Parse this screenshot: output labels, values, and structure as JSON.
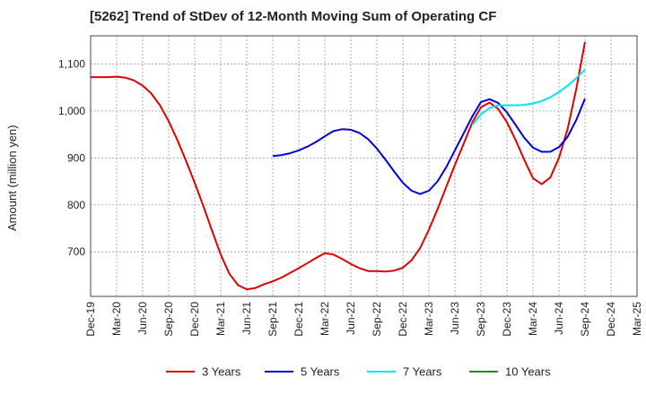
{
  "title": "[5262]  Trend of StDev of 12-Month Moving Sum of Operating CF",
  "chart_data": {
    "type": "line",
    "title": "[5262]  Trend of StDev of 12-Month Moving Sum of Operating CF",
    "xlabel": "",
    "ylabel": "Amount (million yen)",
    "x": [
      "Dec-19",
      "Mar-20",
      "Jun-20",
      "Sep-20",
      "Dec-20",
      "Mar-21",
      "Jun-21",
      "Sep-21",
      "Dec-21",
      "Mar-22",
      "Jun-22",
      "Sep-22",
      "Dec-22",
      "Mar-23",
      "Jun-23",
      "Sep-23",
      "Dec-23",
      "Mar-24",
      "Jun-24",
      "Sep-24",
      "Dec-24",
      "Mar-25"
    ],
    "yticks": [
      700,
      800,
      900,
      1000,
      1100
    ],
    "ytick_labels": [
      "700",
      "800",
      "900",
      "1,000",
      "1,100"
    ],
    "ylim": [
      605,
      1160
    ],
    "grid": true,
    "legend_position": "bottom",
    "series": [
      {
        "name": "3 Years",
        "color": "#e00000",
        "points": [
          [
            "Dec-19",
            1072
          ],
          [
            "Jan-20",
            1072
          ],
          [
            "Feb-20",
            1072
          ],
          [
            "Mar-20",
            1073
          ],
          [
            "Apr-20",
            1071
          ],
          [
            "May-20",
            1065
          ],
          [
            "Jun-20",
            1054
          ],
          [
            "Jul-20",
            1037
          ],
          [
            "Aug-20",
            1012
          ],
          [
            "Sep-20",
            978
          ],
          [
            "Oct-20",
            938
          ],
          [
            "Nov-20",
            894
          ],
          [
            "Dec-20",
            847
          ],
          [
            "Jan-21",
            797
          ],
          [
            "Feb-21",
            745
          ],
          [
            "Mar-21",
            694
          ],
          [
            "Apr-21",
            653
          ],
          [
            "May-21",
            629
          ],
          [
            "Jun-21",
            620
          ],
          [
            "Jul-21",
            623
          ],
          [
            "Aug-21",
            631
          ],
          [
            "Sep-21",
            637
          ],
          [
            "Oct-21",
            645
          ],
          [
            "Nov-21",
            655
          ],
          [
            "Dec-21",
            665
          ],
          [
            "Jan-22",
            676
          ],
          [
            "Feb-22",
            687
          ],
          [
            "Mar-22",
            697
          ],
          [
            "Apr-22",
            694
          ],
          [
            "May-22",
            685
          ],
          [
            "Jun-22",
            674
          ],
          [
            "Jul-22",
            665
          ],
          [
            "Aug-22",
            659
          ],
          [
            "Sep-22",
            659
          ],
          [
            "Oct-22",
            658
          ],
          [
            "Nov-22",
            660
          ],
          [
            "Dec-22",
            666
          ],
          [
            "Jan-23",
            682
          ],
          [
            "Feb-23",
            708
          ],
          [
            "Mar-23",
            747
          ],
          [
            "Apr-23",
            791
          ],
          [
            "May-23",
            838
          ],
          [
            "Jun-23",
            885
          ],
          [
            "Jul-23",
            930
          ],
          [
            "Aug-23",
            975
          ],
          [
            "Sep-23",
            1008
          ],
          [
            "Oct-23",
            1018
          ],
          [
            "Nov-23",
            1004
          ],
          [
            "Dec-23",
            976
          ],
          [
            "Jan-24",
            938
          ],
          [
            "Feb-24",
            896
          ],
          [
            "Mar-24",
            857
          ],
          [
            "Apr-24",
            844
          ],
          [
            "May-24",
            858
          ],
          [
            "Jun-24",
            900
          ],
          [
            "Jul-24",
            962
          ],
          [
            "Aug-24",
            1047
          ],
          [
            "Sep-24",
            1147
          ]
        ]
      },
      {
        "name": "5 Years",
        "color": "#0000dd",
        "points": [
          [
            "Sep-21",
            904
          ],
          [
            "Oct-21",
            906
          ],
          [
            "Nov-21",
            910
          ],
          [
            "Dec-21",
            916
          ],
          [
            "Jan-22",
            924
          ],
          [
            "Feb-22",
            934
          ],
          [
            "Mar-22",
            946
          ],
          [
            "Apr-22",
            957
          ],
          [
            "May-22",
            961
          ],
          [
            "Jun-22",
            960
          ],
          [
            "Jul-22",
            953
          ],
          [
            "Aug-22",
            940
          ],
          [
            "Sep-22",
            920
          ],
          [
            "Oct-22",
            896
          ],
          [
            "Nov-22",
            871
          ],
          [
            "Dec-22",
            847
          ],
          [
            "Jan-23",
            830
          ],
          [
            "Feb-23",
            823
          ],
          [
            "Mar-23",
            830
          ],
          [
            "Apr-23",
            850
          ],
          [
            "May-23",
            880
          ],
          [
            "Jun-23",
            916
          ],
          [
            "Jul-23",
            952
          ],
          [
            "Aug-23",
            988
          ],
          [
            "Sep-23",
            1019
          ],
          [
            "Oct-23",
            1025
          ],
          [
            "Nov-23",
            1017
          ],
          [
            "Dec-23",
            997
          ],
          [
            "Jan-24",
            970
          ],
          [
            "Feb-24",
            943
          ],
          [
            "Mar-24",
            922
          ],
          [
            "Apr-24",
            913
          ],
          [
            "May-24",
            913
          ],
          [
            "Jun-24",
            923
          ],
          [
            "Jul-24",
            945
          ],
          [
            "Aug-24",
            981
          ],
          [
            "Sep-24",
            1026
          ]
        ]
      },
      {
        "name": "7 Years",
        "color": "#00e5ee",
        "points": [
          [
            "Aug-23",
            970
          ],
          [
            "Sep-23",
            993
          ],
          [
            "Oct-23",
            1006
          ],
          [
            "Nov-23",
            1012
          ],
          [
            "Dec-23",
            1012
          ],
          [
            "Jan-24",
            1012
          ],
          [
            "Feb-24",
            1013
          ],
          [
            "Mar-24",
            1016
          ],
          [
            "Apr-24",
            1021
          ],
          [
            "May-24",
            1029
          ],
          [
            "Jun-24",
            1040
          ],
          [
            "Jul-24",
            1054
          ],
          [
            "Aug-24",
            1070
          ],
          [
            "Sep-24",
            1088
          ]
        ]
      },
      {
        "name": "10 Years",
        "color": "#228b22",
        "points": []
      }
    ]
  }
}
